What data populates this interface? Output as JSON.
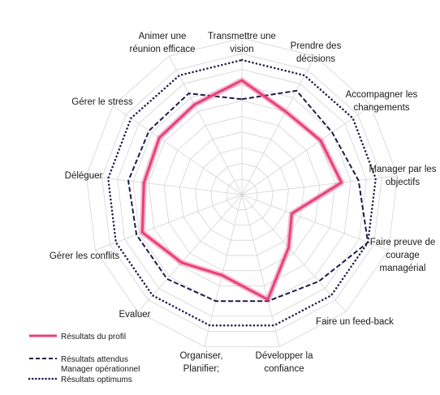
{
  "chart_data": {
    "type": "radar",
    "axes": [
      [
        "Transmettre une",
        "vision"
      ],
      [
        "Prendre des",
        "décisions"
      ],
      [
        "Accompagner les",
        "changements"
      ],
      [
        "Manager par les",
        "objectifs"
      ],
      [
        "Faire preuve de",
        "courage",
        "managérial"
      ],
      [
        "Faire un feed-back"
      ],
      [
        "Développer la",
        "confiance"
      ],
      [
        "Organiser,",
        "Planifier;"
      ],
      [
        "Evaluer"
      ],
      [
        "Gérer  les conflits"
      ],
      [
        "Déléguer"
      ],
      [
        "Gérer  le stress"
      ],
      [
        "Animer une",
        "réunion efficace"
      ]
    ],
    "scale": {
      "min": 0,
      "max": 100,
      "rings": 10
    },
    "series": [
      {
        "name": "Résultats du profil",
        "color": "#e8407a",
        "style": "solid",
        "values": [
          73,
          60,
          61,
          64,
          34,
          45,
          69,
          53,
          58,
          68,
          63,
          64,
          65
        ]
      },
      {
        "name": "Résultats attendus Manager opérationnel",
        "name_lines": [
          "Résultats attendus",
          "Manager opérationnel"
        ],
        "color": "#1c1c4a",
        "style": "dash",
        "values": [
          61,
          75,
          70,
          75,
          86,
          74,
          70,
          70,
          72,
          72,
          73,
          72,
          73
        ]
      },
      {
        "name": "Résultats optimums",
        "color": "#1c1c4a",
        "style": "dot",
        "values": [
          86,
          86,
          86,
          86,
          86,
          86,
          86,
          86,
          86,
          86,
          86,
          86,
          86
        ]
      }
    ],
    "legend_position": "bottom-left"
  }
}
